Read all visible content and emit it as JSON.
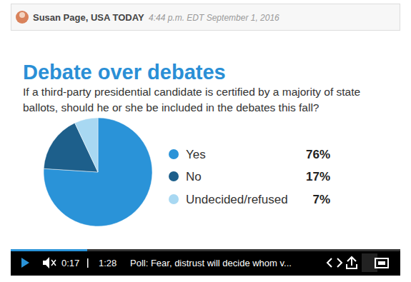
{
  "header": {
    "byline": "Susan Page, USA TODAY",
    "time": "4:44 p.m. EDT September 1, 2016"
  },
  "chart_data": {
    "type": "pie",
    "title": "Debate over debates",
    "subtitle": "If a third-party presidential candidate is certified by a majority of state ballots, should he or she be included in the debates this fall?",
    "categories": [
      "Yes",
      "No",
      "Undecided/refused"
    ],
    "values": [
      76,
      17,
      7
    ],
    "value_labels": [
      "76%",
      "17%",
      "7%"
    ],
    "colors": [
      "#2a93d8",
      "#1d5f8b",
      "#a8d8f2"
    ],
    "legend": "right"
  },
  "video": {
    "current": "0:17",
    "duration": "1:28",
    "caption": "Poll: Fear, distrust will decide whom v..."
  }
}
